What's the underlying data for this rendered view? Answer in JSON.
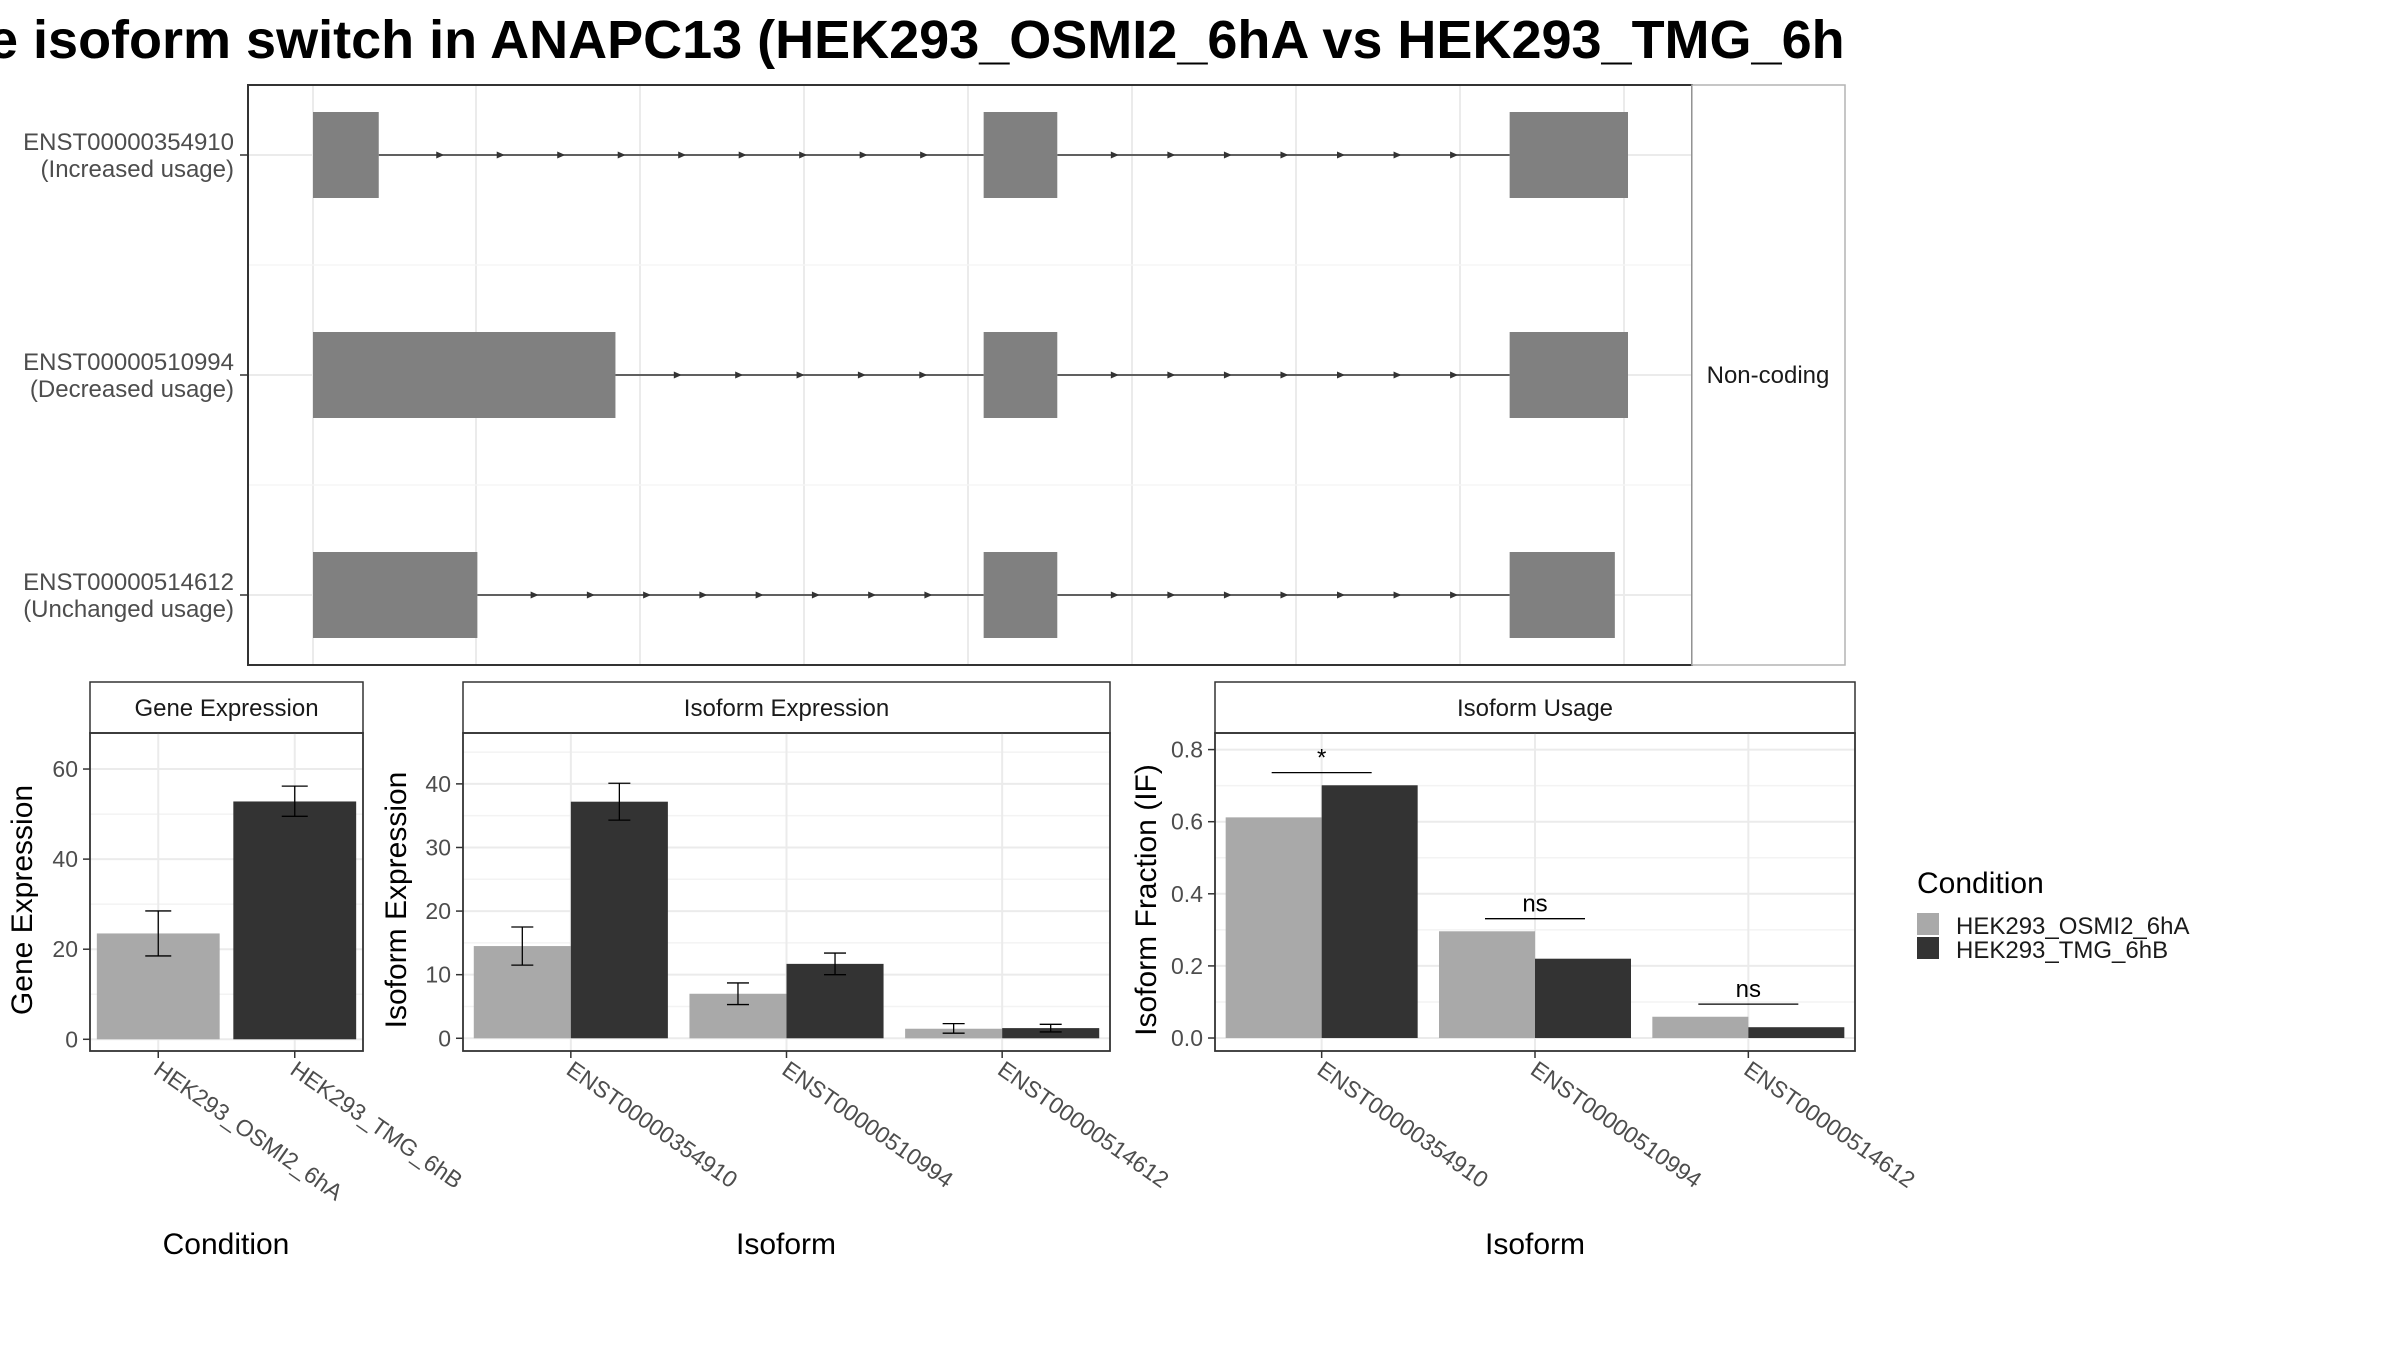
{
  "title": "e isoform switch in ANAPC13 (HEK293_OSMI2_6hA vs HEK293_TMG_6h",
  "colors": {
    "HEK293_OSMI2_6hA": "#a9a9a9",
    "HEK293_TMG_6hB": "#333333",
    "exon": "#808080",
    "grid": "#ebebeb"
  },
  "structure_panel": {
    "facet_label": "Non-coding",
    "transcripts": [
      {
        "id": "ENST00000354910",
        "usage": "(Increased usage)",
        "exons": [
          [
            0.0,
            0.05
          ],
          [
            0.51,
            0.566
          ],
          [
            0.91,
            1.0
          ]
        ]
      },
      {
        "id": "ENST00000510994",
        "usage": "(Decreased usage)",
        "exons": [
          [
            0.0,
            0.23
          ],
          [
            0.51,
            0.566
          ],
          [
            0.91,
            1.0
          ]
        ]
      },
      {
        "id": "ENST00000514612",
        "usage": "(Unchanged usage)",
        "exons": [
          [
            0.0,
            0.125
          ],
          [
            0.51,
            0.566
          ],
          [
            0.91,
            0.99
          ]
        ]
      }
    ]
  },
  "legend": {
    "title": "Condition",
    "items": [
      "HEK293_OSMI2_6hA",
      "HEK293_TMG_6hB"
    ]
  },
  "chart_data": [
    {
      "type": "bar",
      "title": "Gene Expression",
      "xlabel": "Condition",
      "ylabel": "Gene Expression",
      "categories": [
        "HEK293_OSMI2_6hA",
        "HEK293_TMG_6hB"
      ],
      "values": [
        23.5,
        52.8
      ],
      "errors": [
        [
          18.5,
          28.5
        ],
        [
          49.5,
          56.2
        ]
      ],
      "colors": [
        "#a9a9a9",
        "#333333"
      ],
      "yticks": [
        0,
        20,
        40,
        60
      ],
      "ylim": [
        -2.6,
        68
      ]
    },
    {
      "type": "bar",
      "title": "Isoform Expression",
      "xlabel": "Isoform",
      "ylabel": "Isoform Expression",
      "categories": [
        "ENST00000354910",
        "ENST00000510994",
        "ENST00000514612"
      ],
      "series": [
        {
          "name": "HEK293_OSMI2_6hA",
          "values": [
            14.5,
            7.0,
            1.5
          ],
          "errors": [
            [
              11.5,
              17.5
            ],
            [
              5.3,
              8.7
            ],
            [
              0.8,
              2.3
            ]
          ]
        },
        {
          "name": "HEK293_TMG_6hB",
          "values": [
            37.2,
            11.7,
            1.6
          ],
          "errors": [
            [
              34.3,
              40.1
            ],
            [
              10.0,
              13.4
            ],
            [
              1.0,
              2.2
            ]
          ]
        }
      ],
      "yticks": [
        0,
        10,
        20,
        30,
        40
      ],
      "ylim": [
        -2.0,
        48
      ]
    },
    {
      "type": "bar",
      "title": "Isoform Usage",
      "xlabel": "Isoform",
      "ylabel": "Isoform Fraction (IF)",
      "categories": [
        "ENST00000354910",
        "ENST00000510994",
        "ENST00000514612"
      ],
      "series": [
        {
          "name": "HEK293_OSMI2_6hA",
          "values": [
            0.612,
            0.296,
            0.059
          ]
        },
        {
          "name": "HEK293_TMG_6hB",
          "values": [
            0.701,
            0.22,
            0.03
          ]
        }
      ],
      "significance": [
        "*",
        "ns",
        "ns"
      ],
      "yticks": [
        0.0,
        0.2,
        0.4,
        0.6,
        0.8
      ],
      "yticklabels": [
        "0.0",
        "0.2",
        "0.4",
        "0.6",
        "0.8"
      ],
      "ylim": [
        -0.036,
        0.846
      ]
    }
  ]
}
